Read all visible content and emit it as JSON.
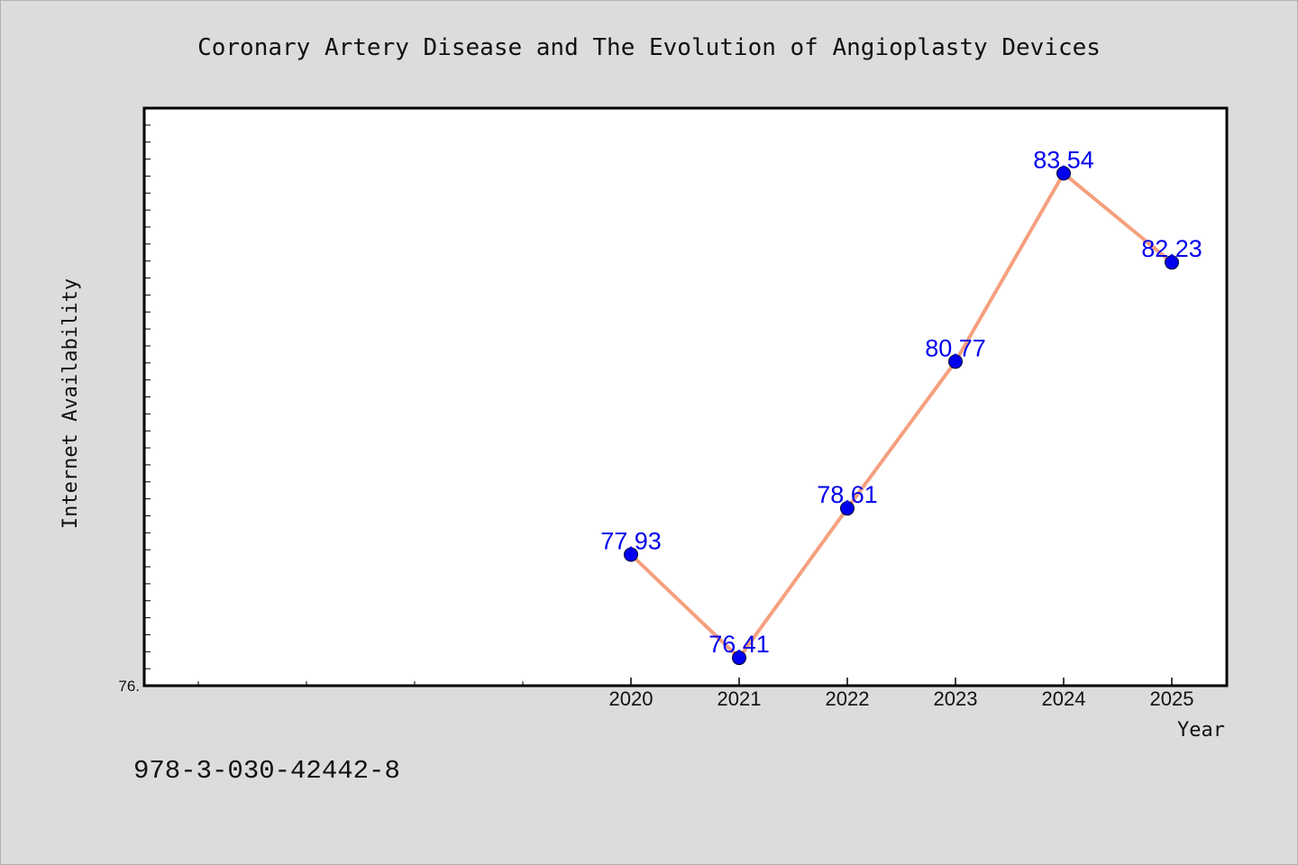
{
  "chart_data": {
    "type": "line",
    "title": "Coronary Artery Disease and The Evolution of Angioplasty Devices",
    "xlabel": "Year",
    "ylabel": "Internet Availability",
    "x": [
      "2020",
      "2021",
      "2022",
      "2023",
      "2024",
      "2025"
    ],
    "series": [
      {
        "values": [
          77.93,
          76.41,
          78.61,
          80.77,
          83.54,
          82.23
        ],
        "labels": [
          "77.93",
          "76.41",
          "78.61",
          "80.77",
          "83.54",
          "82.23"
        ]
      }
    ],
    "ylim": [
      76.0,
      84.5
    ],
    "y_tick_labels": [
      {
        "value": 76.0,
        "label": "76."
      }
    ],
    "grid": false,
    "line_color": "#f5a07f",
    "marker_color": "#0000ee"
  },
  "footnote": "978-3-030-42442-8"
}
